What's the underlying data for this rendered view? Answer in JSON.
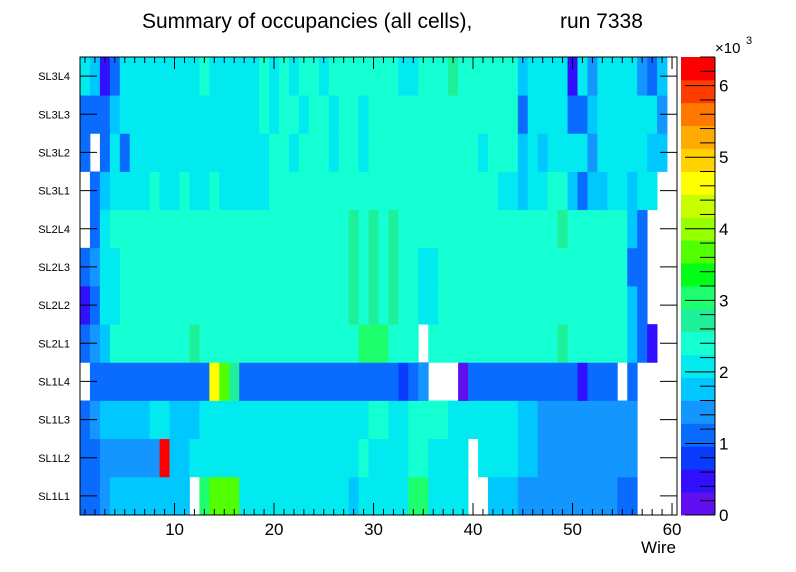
{
  "chart_data": {
    "type": "heatmap",
    "title_main": "Summary of occupancies (all cells),",
    "title_run": "run 7338",
    "xlabel": "Wire",
    "xlim": [
      0.5,
      60.5
    ],
    "x_ticks": [
      10,
      20,
      30,
      40,
      50,
      60
    ],
    "rows": [
      "SL1L1",
      "SL1L2",
      "SL1L3",
      "SL1L4",
      "SL2L1",
      "SL2L2",
      "SL2L3",
      "SL2L4",
      "SL3L1",
      "SL3L2",
      "SL3L3",
      "SL3L4"
    ],
    "z_multiplier_label": "×10",
    "z_multiplier_exp": "3",
    "z_max": 6.4,
    "z_ticks": [
      0,
      1,
      2,
      3,
      4,
      5,
      6
    ],
    "palette_colors": [
      "#6010f0",
      "#3010ff",
      "#0a3cff",
      "#0a6cff",
      "#1496ff",
      "#00c8ff",
      "#00eaf0",
      "#14ffd2",
      "#1ef09a",
      "#1eff6e",
      "#00ff14",
      "#50ff00",
      "#96ff00",
      "#c8ff00",
      "#ffff00",
      "#ffd200",
      "#ffaa00",
      "#ff7800",
      "#ff3c00",
      "#ff0000"
    ],
    "values_x1000": {
      "SL1L1": [
        1.0,
        1.0,
        1.4,
        1.6,
        1.6,
        1.6,
        1.6,
        1.6,
        1.6,
        1.6,
        1.6,
        0.0,
        3.0,
        3.6,
        3.6,
        3.6,
        2.0,
        2.0,
        2.0,
        2.0,
        2.0,
        2.0,
        2.0,
        2.0,
        2.0,
        2.0,
        2.0,
        1.6,
        2.0,
        2.0,
        2.0,
        2.0,
        2.0,
        3.0,
        3.0,
        2.0,
        2.0,
        2.0,
        2.0,
        0.0,
        0.0,
        1.6,
        1.6,
        1.6,
        1.4,
        1.4,
        1.4,
        1.4,
        1.4,
        1.4,
        1.4,
        1.4,
        1.4,
        1.4,
        1.2,
        1.2,
        0.0,
        0.0,
        0.0,
        0.0
      ],
      "SL1L2": [
        1.0,
        1.0,
        1.4,
        1.4,
        1.4,
        1.4,
        1.4,
        1.4,
        6.4,
        1.6,
        1.6,
        2.0,
        2.0,
        2.0,
        2.0,
        2.0,
        2.0,
        2.0,
        2.0,
        2.0,
        2.0,
        2.0,
        2.0,
        2.0,
        2.0,
        2.0,
        2.0,
        2.0,
        2.4,
        2.0,
        2.0,
        2.0,
        2.0,
        2.4,
        2.4,
        2.0,
        2.0,
        2.0,
        2.0,
        0.0,
        2.0,
        2.0,
        2.0,
        2.0,
        1.6,
        1.6,
        1.4,
        1.4,
        1.4,
        1.4,
        1.4,
        1.4,
        1.4,
        1.4,
        1.4,
        1.4,
        0.0,
        0.0,
        0.0,
        0.0
      ],
      "SL1L3": [
        1.0,
        1.4,
        1.6,
        1.6,
        1.6,
        1.6,
        1.6,
        2.0,
        2.0,
        1.6,
        1.6,
        1.6,
        2.0,
        2.0,
        2.0,
        2.0,
        2.0,
        2.0,
        2.0,
        2.0,
        2.0,
        2.0,
        2.0,
        2.0,
        2.0,
        2.0,
        2.0,
        2.0,
        2.0,
        2.4,
        2.4,
        2.0,
        2.0,
        2.4,
        2.4,
        2.4,
        2.4,
        2.0,
        2.0,
        2.0,
        2.0,
        2.0,
        2.0,
        2.0,
        1.6,
        1.6,
        1.4,
        1.4,
        1.4,
        1.4,
        1.4,
        1.4,
        1.4,
        1.4,
        1.4,
        1.4,
        0.0,
        0.0,
        0.0,
        0.0
      ],
      "SL1L4": [
        0.0,
        1.0,
        1.0,
        1.0,
        1.0,
        1.0,
        1.2,
        1.2,
        1.2,
        1.2,
        1.2,
        1.2,
        1.2,
        4.8,
        3.6,
        2.8,
        1.2,
        1.2,
        1.2,
        1.2,
        1.2,
        1.2,
        1.2,
        1.2,
        1.2,
        1.2,
        1.2,
        1.2,
        1.2,
        1.2,
        1.2,
        1.2,
        0.9,
        1.2,
        1.4,
        0.0,
        0.0,
        0.0,
        0.3,
        1.2,
        1.2,
        1.2,
        1.2,
        1.2,
        1.2,
        1.2,
        1.0,
        1.0,
        1.0,
        1.0,
        0.4,
        1.0,
        1.0,
        1.0,
        0.0,
        1.0,
        0.0,
        0.0,
        0.0,
        0.0
      ],
      "SL2L1": [
        1.2,
        1.4,
        1.6,
        2.4,
        2.4,
        2.4,
        2.4,
        2.4,
        2.4,
        2.4,
        2.4,
        2.8,
        2.4,
        2.4,
        2.4,
        2.4,
        2.4,
        2.4,
        2.4,
        2.4,
        2.4,
        2.4,
        2.4,
        2.4,
        2.4,
        2.4,
        2.4,
        2.4,
        3.0,
        3.0,
        3.0,
        2.4,
        2.4,
        2.4,
        0.0,
        2.4,
        2.4,
        2.4,
        2.4,
        2.4,
        2.4,
        2.4,
        2.4,
        2.4,
        2.4,
        2.4,
        2.4,
        2.4,
        2.8,
        2.4,
        2.4,
        2.4,
        2.4,
        2.4,
        2.4,
        1.6,
        1.2,
        0.5,
        0.0,
        0.0
      ],
      "SL2L2": [
        0.5,
        1.2,
        2.0,
        2.0,
        2.4,
        2.4,
        2.4,
        2.4,
        2.4,
        2.4,
        2.4,
        2.4,
        2.4,
        2.4,
        2.4,
        2.4,
        2.4,
        2.4,
        2.4,
        2.4,
        2.4,
        2.4,
        2.4,
        2.4,
        2.4,
        2.4,
        2.4,
        2.8,
        2.4,
        2.8,
        2.4,
        2.8,
        2.4,
        2.4,
        2.0,
        2.0,
        2.4,
        2.4,
        2.4,
        2.4,
        2.4,
        2.4,
        2.4,
        2.4,
        2.4,
        2.4,
        2.4,
        2.4,
        2.4,
        2.4,
        2.4,
        2.4,
        2.4,
        2.4,
        2.4,
        1.6,
        1.2,
        0.0,
        0.0,
        0.0
      ],
      "SL2L3": [
        1.0,
        1.4,
        2.0,
        2.0,
        2.4,
        2.4,
        2.4,
        2.4,
        2.4,
        2.4,
        2.4,
        2.4,
        2.4,
        2.4,
        2.4,
        2.4,
        2.4,
        2.4,
        2.4,
        2.4,
        2.4,
        2.4,
        2.4,
        2.4,
        2.4,
        2.4,
        2.4,
        2.8,
        2.4,
        2.8,
        2.4,
        2.8,
        2.4,
        2.4,
        2.0,
        2.0,
        2.4,
        2.4,
        2.4,
        2.4,
        2.4,
        2.4,
        2.4,
        2.4,
        2.4,
        2.4,
        2.4,
        2.4,
        2.4,
        2.4,
        2.4,
        2.4,
        2.4,
        2.4,
        2.4,
        1.0,
        1.0,
        0.0,
        0.0,
        0.0
      ],
      "SL2L4": [
        0.0,
        1.0,
        2.0,
        2.4,
        2.4,
        2.4,
        2.4,
        2.4,
        2.4,
        2.4,
        2.4,
        2.4,
        2.4,
        2.4,
        2.4,
        2.4,
        2.4,
        2.4,
        2.4,
        2.4,
        2.4,
        2.4,
        2.4,
        2.4,
        2.4,
        2.4,
        2.4,
        2.8,
        2.4,
        2.8,
        2.4,
        2.8,
        2.4,
        2.4,
        2.4,
        2.4,
        2.4,
        2.4,
        2.4,
        2.4,
        2.4,
        2.4,
        2.4,
        2.4,
        2.4,
        2.4,
        2.4,
        2.4,
        2.8,
        2.4,
        2.4,
        2.4,
        2.4,
        2.4,
        2.4,
        1.6,
        1.0,
        0.0,
        0.0,
        0.0
      ],
      "SL3L1": [
        0.0,
        1.0,
        1.6,
        2.0,
        2.0,
        2.0,
        2.0,
        2.4,
        2.0,
        2.0,
        2.4,
        2.0,
        2.0,
        2.4,
        2.0,
        2.0,
        2.0,
        2.0,
        2.0,
        2.4,
        2.4,
        2.4,
        2.4,
        2.4,
        2.4,
        2.4,
        2.4,
        2.4,
        2.4,
        2.4,
        2.4,
        2.4,
        2.4,
        2.4,
        2.4,
        2.4,
        2.4,
        2.4,
        2.4,
        2.4,
        2.4,
        2.4,
        2.0,
        2.0,
        1.6,
        2.0,
        2.0,
        2.4,
        2.4,
        1.6,
        1.0,
        1.6,
        1.6,
        2.0,
        2.0,
        1.6,
        2.0,
        2.0,
        0.0,
        0.0
      ],
      "SL3L2": [
        1.0,
        0.0,
        1.0,
        2.0,
        1.0,
        2.0,
        2.0,
        2.0,
        2.0,
        2.0,
        2.0,
        2.0,
        2.0,
        2.0,
        2.0,
        2.0,
        2.0,
        2.0,
        2.0,
        2.4,
        2.4,
        2.0,
        2.4,
        2.4,
        2.4,
        2.0,
        2.4,
        2.4,
        2.0,
        2.4,
        2.4,
        2.4,
        2.4,
        2.4,
        2.4,
        2.4,
        2.4,
        2.4,
        2.4,
        2.4,
        2.0,
        2.4,
        2.4,
        2.4,
        1.6,
        2.0,
        1.6,
        2.0,
        2.0,
        2.0,
        2.0,
        1.4,
        2.0,
        2.0,
        2.0,
        2.0,
        2.0,
        1.6,
        1.6,
        0.0
      ],
      "SL3L3": [
        1.0,
        1.0,
        1.0,
        1.6,
        2.0,
        2.0,
        2.0,
        2.0,
        2.0,
        2.0,
        2.0,
        2.0,
        2.0,
        2.0,
        2.0,
        2.0,
        2.0,
        2.0,
        2.4,
        2.0,
        2.4,
        2.4,
        2.0,
        2.4,
        2.4,
        2.0,
        2.4,
        2.4,
        2.0,
        2.4,
        2.4,
        2.4,
        2.4,
        2.4,
        2.4,
        2.4,
        2.4,
        2.4,
        2.4,
        2.4,
        2.4,
        2.4,
        2.4,
        2.4,
        1.2,
        2.0,
        2.0,
        2.0,
        2.0,
        1.0,
        1.0,
        1.6,
        2.0,
        2.0,
        2.0,
        2.0,
        2.0,
        2.0,
        1.4,
        0.0
      ],
      "SL3L4": [
        2.0,
        1.6,
        0.5,
        1.2,
        2.0,
        2.0,
        2.0,
        2.0,
        2.0,
        2.0,
        2.0,
        2.0,
        2.4,
        2.0,
        2.0,
        2.0,
        2.0,
        2.0,
        2.4,
        2.0,
        2.4,
        2.0,
        2.4,
        2.4,
        2.0,
        2.4,
        2.4,
        2.4,
        2.4,
        2.4,
        2.4,
        2.4,
        2.0,
        2.0,
        2.4,
        2.4,
        2.4,
        2.8,
        2.4,
        2.4,
        2.4,
        2.4,
        2.4,
        2.4,
        1.6,
        2.0,
        2.0,
        2.0,
        2.0,
        0.4,
        2.0,
        1.4,
        2.0,
        2.0,
        2.0,
        2.0,
        1.4,
        1.0,
        1.6,
        0.0
      ]
    }
  }
}
